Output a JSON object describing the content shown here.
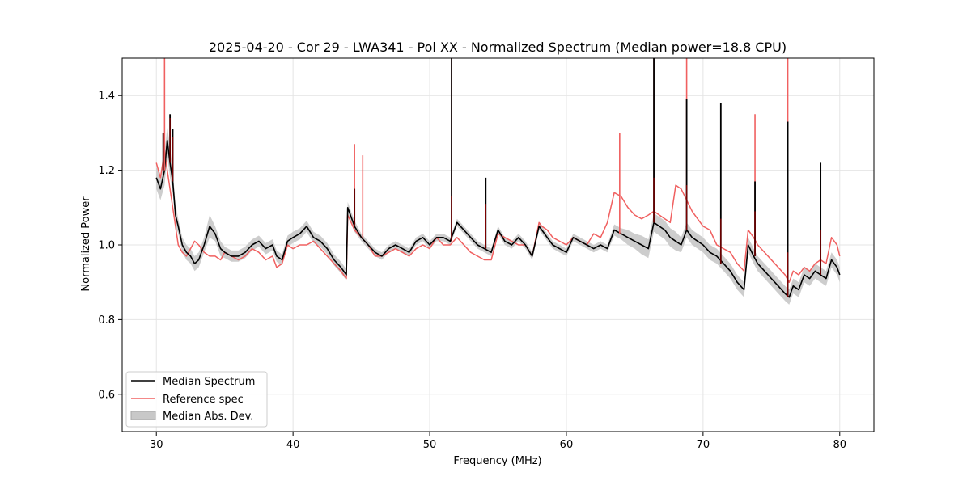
{
  "chart_data": {
    "type": "line",
    "title": "2025-04-20 - Cor 29 - LWA341 - Pol XX - Normalized Spectrum (Median power=18.8 CPU)",
    "xlabel": "Frequency (MHz)",
    "ylabel": "Normalized Power",
    "xlim": [
      27.5,
      82.5
    ],
    "ylim": [
      0.5,
      1.5
    ],
    "xticks": [
      30,
      40,
      50,
      60,
      70,
      80
    ],
    "yticks": [
      0.6,
      0.8,
      1.0,
      1.2,
      1.4
    ],
    "xtick_labels": [
      "30",
      "40",
      "50",
      "60",
      "70",
      "80"
    ],
    "ytick_labels": [
      "0.6",
      "0.8",
      "1.0",
      "1.2",
      "1.4"
    ],
    "grid": true,
    "legend_position": "lower-left",
    "series": [
      {
        "name": "Median Spectrum",
        "color": "#000000",
        "x": [
          30.0,
          30.3,
          30.6,
          30.8,
          31.0,
          31.2,
          31.4,
          31.6,
          31.9,
          32.2,
          32.5,
          32.8,
          33.1,
          33.5,
          33.9,
          34.3,
          34.7,
          35.0,
          35.5,
          36.0,
          36.5,
          37.0,
          37.5,
          38.0,
          38.5,
          38.8,
          39.2,
          39.6,
          40.0,
          40.5,
          41.0,
          41.5,
          42.0,
          42.5,
          43.0,
          43.5,
          43.9,
          44.0,
          44.5,
          45.0,
          45.5,
          46.0,
          46.5,
          47.0,
          47.5,
          48.0,
          48.5,
          49.0,
          49.5,
          50.0,
          50.5,
          51.0,
          51.5,
          52.0,
          52.5,
          53.0,
          53.5,
          54.0,
          54.5,
          55.0,
          55.5,
          56.0,
          56.5,
          57.0,
          57.5,
          58.0,
          58.2,
          58.6,
          59.0,
          59.5,
          60.0,
          60.5,
          61.0,
          61.5,
          62.0,
          62.5,
          63.0,
          63.5,
          64.0,
          64.5,
          65.0,
          65.5,
          66.0,
          66.4,
          66.8,
          67.2,
          67.6,
          68.0,
          68.4,
          68.8,
          69.2,
          69.6,
          70.0,
          70.5,
          71.0,
          71.5,
          72.0,
          72.5,
          73.0,
          73.3,
          73.7,
          74.0,
          74.5,
          75.0,
          75.5,
          76.0,
          76.3,
          76.6,
          77.0,
          77.4,
          77.8,
          78.2,
          78.6,
          79.0,
          79.4,
          79.8,
          80.0
        ],
        "y": [
          1.18,
          1.15,
          1.2,
          1.28,
          1.22,
          1.17,
          1.08,
          1.05,
          1.0,
          0.98,
          0.97,
          0.95,
          0.96,
          1.0,
          1.05,
          1.03,
          0.99,
          0.98,
          0.97,
          0.97,
          0.98,
          1.0,
          1.01,
          0.99,
          1.0,
          0.97,
          0.96,
          1.01,
          1.02,
          1.03,
          1.05,
          1.02,
          1.01,
          0.99,
          0.96,
          0.94,
          0.92,
          1.1,
          1.05,
          1.02,
          1.0,
          0.98,
          0.97,
          0.99,
          1.0,
          0.99,
          0.98,
          1.01,
          1.02,
          1.0,
          1.02,
          1.02,
          1.01,
          1.06,
          1.04,
          1.02,
          1.0,
          0.99,
          0.98,
          1.04,
          1.01,
          1.0,
          1.02,
          1.0,
          0.97,
          1.05,
          1.04,
          1.02,
          1.0,
          0.99,
          0.98,
          1.02,
          1.01,
          1.0,
          0.99,
          1.0,
          0.99,
          1.04,
          1.03,
          1.02,
          1.01,
          1.0,
          0.99,
          1.06,
          1.05,
          1.04,
          1.02,
          1.01,
          1.0,
          1.04,
          1.02,
          1.01,
          1.0,
          0.98,
          0.97,
          0.95,
          0.93,
          0.9,
          0.88,
          1.0,
          0.97,
          0.95,
          0.93,
          0.91,
          0.89,
          0.87,
          0.86,
          0.89,
          0.88,
          0.92,
          0.91,
          0.93,
          0.92,
          0.91,
          0.96,
          0.94,
          0.92
        ]
      },
      {
        "name": "Reference spec",
        "color": "#f06060",
        "x": [
          30.0,
          30.3,
          30.6,
          30.8,
          31.0,
          31.2,
          31.4,
          31.6,
          31.9,
          32.2,
          32.5,
          32.8,
          33.1,
          33.5,
          33.9,
          34.3,
          34.7,
          35.0,
          35.5,
          36.0,
          36.5,
          37.0,
          37.5,
          38.0,
          38.5,
          38.8,
          39.2,
          39.6,
          40.0,
          40.5,
          41.0,
          41.5,
          42.0,
          42.5,
          43.0,
          43.5,
          43.9,
          44.0,
          44.5,
          45.0,
          45.5,
          46.0,
          46.5,
          47.0,
          47.5,
          48.0,
          48.5,
          49.0,
          49.5,
          50.0,
          50.5,
          51.0,
          51.5,
          52.0,
          52.5,
          53.0,
          53.5,
          54.0,
          54.5,
          55.0,
          55.5,
          56.0,
          56.5,
          57.0,
          57.5,
          58.0,
          58.2,
          58.6,
          59.0,
          59.5,
          60.0,
          60.5,
          61.0,
          61.5,
          62.0,
          62.5,
          63.0,
          63.5,
          64.0,
          64.5,
          65.0,
          65.5,
          66.0,
          66.4,
          66.8,
          67.2,
          67.6,
          68.0,
          68.4,
          68.8,
          69.2,
          69.6,
          70.0,
          70.5,
          71.0,
          71.5,
          72.0,
          72.5,
          73.0,
          73.3,
          73.7,
          74.0,
          74.5,
          75.0,
          75.5,
          76.0,
          76.3,
          76.6,
          77.0,
          77.4,
          77.8,
          78.2,
          78.6,
          79.0,
          79.4,
          79.8,
          80.0
        ],
        "y": [
          1.22,
          1.18,
          1.25,
          1.2,
          1.15,
          1.1,
          1.05,
          1.0,
          0.98,
          0.97,
          0.99,
          1.01,
          1.0,
          0.98,
          0.97,
          0.97,
          0.96,
          0.98,
          0.97,
          0.96,
          0.97,
          0.99,
          0.98,
          0.96,
          0.97,
          0.94,
          0.95,
          1.0,
          0.99,
          1.0,
          1.0,
          1.01,
          0.99,
          0.97,
          0.95,
          0.93,
          0.91,
          1.08,
          1.04,
          1.02,
          1.0,
          0.97,
          0.97,
          0.98,
          0.99,
          0.98,
          0.97,
          0.99,
          1.0,
          0.99,
          1.02,
          1.0,
          1.0,
          1.02,
          1.0,
          0.98,
          0.97,
          0.96,
          0.96,
          1.03,
          1.02,
          1.01,
          1.0,
          1.0,
          0.97,
          1.06,
          1.05,
          1.04,
          1.02,
          1.01,
          1.0,
          1.02,
          1.01,
          1.0,
          1.03,
          1.02,
          1.06,
          1.14,
          1.13,
          1.1,
          1.08,
          1.07,
          1.08,
          1.09,
          1.08,
          1.07,
          1.06,
          1.16,
          1.15,
          1.12,
          1.09,
          1.07,
          1.05,
          1.04,
          1.0,
          0.99,
          0.98,
          0.95,
          0.93,
          1.04,
          1.02,
          1.0,
          0.98,
          0.96,
          0.94,
          0.92,
          0.9,
          0.93,
          0.92,
          0.94,
          0.93,
          0.95,
          0.96,
          0.95,
          1.02,
          1.0,
          0.97
        ]
      }
    ],
    "mad_band": {
      "name": "Median Abs. Dev.",
      "color": "#c8c8c8",
      "x": [
        30.0,
        30.3,
        30.6,
        30.8,
        31.0,
        31.2,
        31.4,
        31.6,
        31.9,
        32.2,
        32.5,
        32.8,
        33.1,
        33.5,
        33.9,
        34.3,
        34.7,
        35.0,
        35.5,
        36.0,
        36.5,
        37.0,
        37.5,
        38.0,
        38.5,
        38.8,
        39.2,
        39.6,
        40.0,
        40.5,
        41.0,
        41.5,
        42.0,
        42.5,
        43.0,
        43.5,
        43.9,
        44.0,
        44.5,
        45.0,
        45.5,
        46.0,
        46.5,
        47.0,
        47.5,
        48.0,
        48.5,
        49.0,
        49.5,
        50.0,
        50.5,
        51.0,
        51.5,
        52.0,
        52.5,
        53.0,
        53.5,
        54.0,
        54.5,
        55.0,
        55.5,
        56.0,
        56.5,
        57.0,
        57.5,
        58.0,
        58.2,
        58.6,
        59.0,
        59.5,
        60.0,
        60.5,
        61.0,
        61.5,
        62.0,
        62.5,
        63.0,
        63.5,
        64.0,
        64.5,
        65.0,
        65.5,
        66.0,
        66.4,
        66.8,
        67.2,
        67.6,
        68.0,
        68.4,
        68.8,
        69.2,
        69.6,
        70.0,
        70.5,
        71.0,
        71.5,
        72.0,
        72.5,
        73.0,
        73.3,
        73.7,
        74.0,
        74.5,
        75.0,
        75.5,
        76.0,
        76.3,
        76.6,
        77.0,
        77.4,
        77.8,
        78.2,
        78.6,
        79.0,
        79.4,
        79.8,
        80.0
      ],
      "half_width": [
        0.03,
        0.03,
        0.04,
        0.04,
        0.04,
        0.03,
        0.03,
        0.02,
        0.02,
        0.02,
        0.02,
        0.02,
        0.02,
        0.02,
        0.03,
        0.02,
        0.02,
        0.015,
        0.015,
        0.015,
        0.015,
        0.015,
        0.015,
        0.015,
        0.015,
        0.015,
        0.015,
        0.015,
        0.015,
        0.015,
        0.015,
        0.015,
        0.015,
        0.015,
        0.015,
        0.015,
        0.015,
        0.015,
        0.015,
        0.01,
        0.01,
        0.01,
        0.01,
        0.01,
        0.01,
        0.01,
        0.01,
        0.01,
        0.01,
        0.01,
        0.01,
        0.01,
        0.01,
        0.01,
        0.01,
        0.01,
        0.01,
        0.01,
        0.01,
        0.01,
        0.01,
        0.01,
        0.01,
        0.01,
        0.01,
        0.01,
        0.01,
        0.01,
        0.01,
        0.01,
        0.01,
        0.01,
        0.01,
        0.01,
        0.01,
        0.01,
        0.01,
        0.015,
        0.015,
        0.02,
        0.02,
        0.025,
        0.025,
        0.025,
        0.025,
        0.025,
        0.025,
        0.025,
        0.02,
        0.02,
        0.02,
        0.02,
        0.02,
        0.02,
        0.02,
        0.02,
        0.02,
        0.02,
        0.02,
        0.02,
        0.02,
        0.02,
        0.02,
        0.02,
        0.02,
        0.02,
        0.02,
        0.02,
        0.02,
        0.02,
        0.02,
        0.02,
        0.02,
        0.02,
        0.02,
        0.02,
        0.02
      ]
    },
    "spikes": {
      "median": [
        {
          "x": 30.5,
          "y": 1.3
        },
        {
          "x": 31.0,
          "y": 1.35
        },
        {
          "x": 31.2,
          "y": 1.31
        },
        {
          "x": 44.5,
          "y": 1.15
        },
        {
          "x": 51.6,
          "y": 1.5
        },
        {
          "x": 54.1,
          "y": 1.18
        },
        {
          "x": 66.4,
          "y": 1.5
        },
        {
          "x": 68.8,
          "y": 1.39
        },
        {
          "x": 71.3,
          "y": 1.38
        },
        {
          "x": 73.8,
          "y": 1.17
        },
        {
          "x": 76.2,
          "y": 1.33
        },
        {
          "x": 78.6,
          "y": 1.22
        }
      ],
      "reference": [
        {
          "x": 30.6,
          "y": 1.5
        },
        {
          "x": 44.5,
          "y": 1.27
        },
        {
          "x": 45.1,
          "y": 1.24
        },
        {
          "x": 51.6,
          "y": 1.5
        },
        {
          "x": 63.9,
          "y": 1.3
        },
        {
          "x": 66.4,
          "y": 1.5
        },
        {
          "x": 68.8,
          "y": 1.5
        },
        {
          "x": 73.8,
          "y": 1.35
        },
        {
          "x": 76.2,
          "y": 1.5
        }
      ]
    },
    "legend": [
      {
        "label": "Median Spectrum",
        "kind": "line",
        "color": "#000000"
      },
      {
        "label": "Reference spec",
        "kind": "line",
        "color": "#f06060"
      },
      {
        "label": "Median Abs. Dev.",
        "kind": "patch",
        "color": "#c8c8c8"
      }
    ]
  }
}
